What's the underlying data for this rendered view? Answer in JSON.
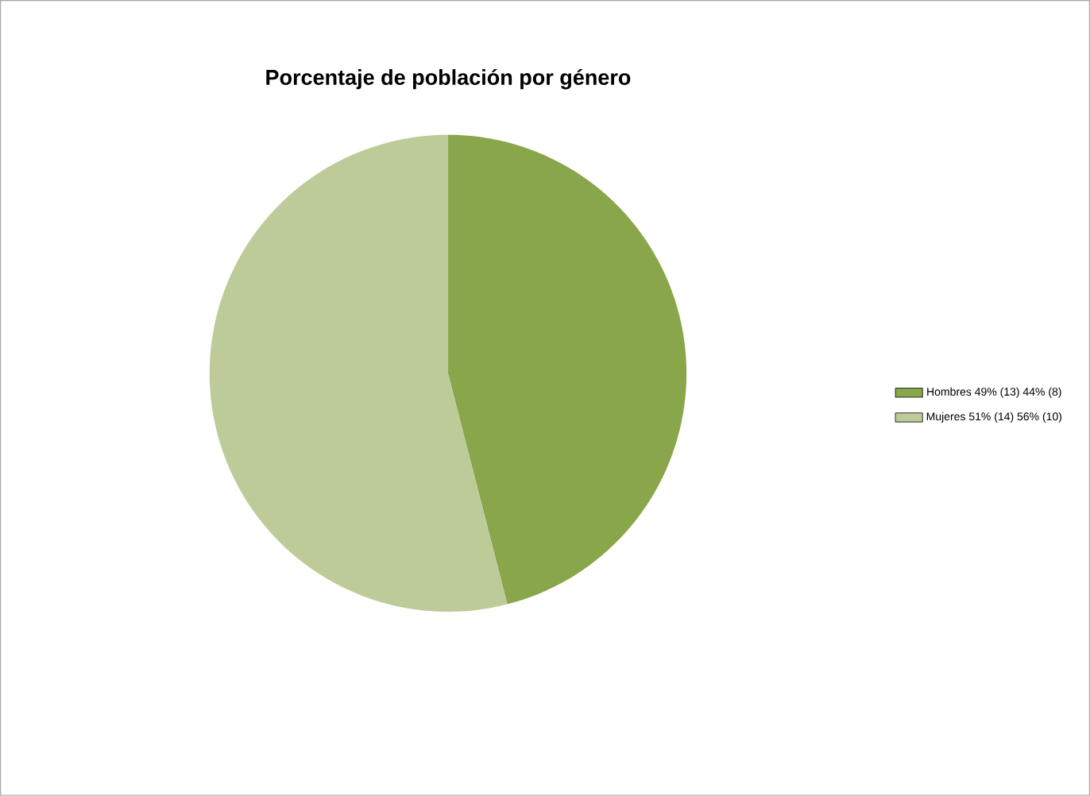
{
  "chart_data": {
    "type": "pie",
    "title": "Porcentaje de población por género",
    "categories": [
      "Hombres  49% (13) 44% (8)",
      "Mujeres 51% (14) 56% (10)"
    ],
    "values": [
      46,
      54
    ],
    "colors": [
      "#8aa64b",
      "#bccb98"
    ],
    "legend": "right"
  }
}
